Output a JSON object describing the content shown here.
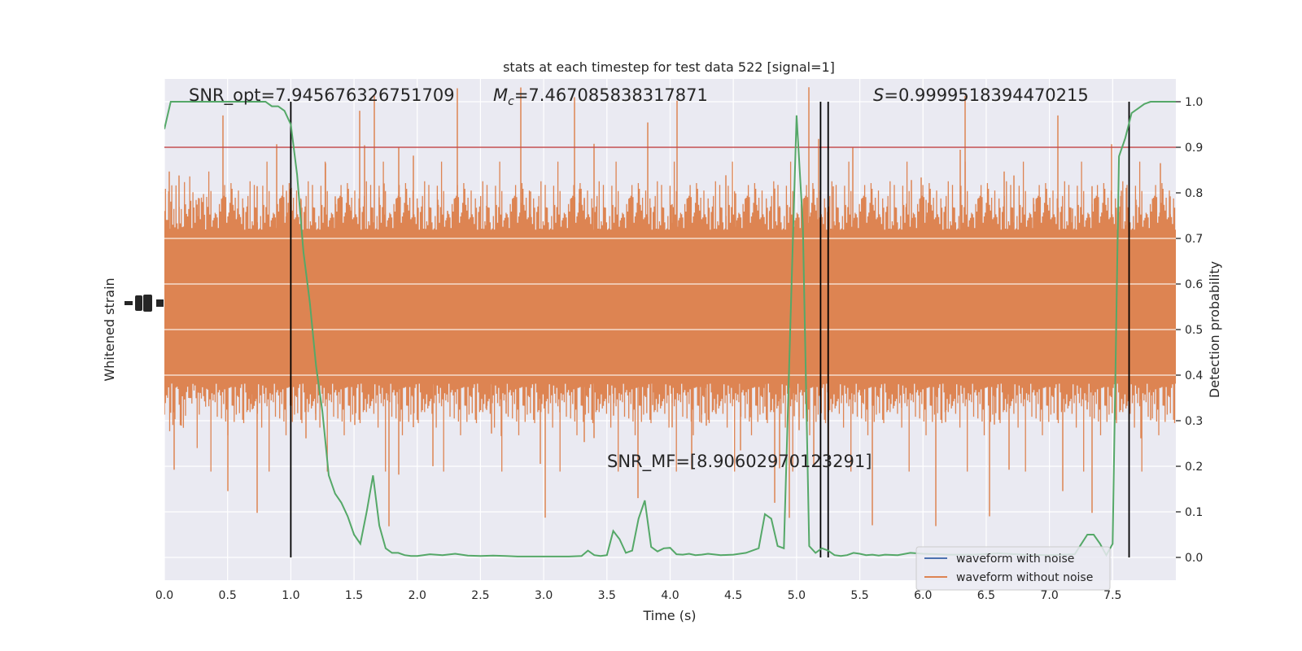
{
  "chart_data": {
    "type": "line",
    "title": "stats at each timestep for test data 522 [signal=1]",
    "xlabel": "Time (s)",
    "ylabel_left": "Whitened strain",
    "ylabel_right": "Detection probability",
    "xlim": [
      0.0,
      8.0
    ],
    "ylim_right": [
      -0.05,
      1.05
    ],
    "grid": true,
    "x_ticks": [
      "0.0",
      "0.5",
      "1.0",
      "1.5",
      "2.0",
      "2.5",
      "3.0",
      "3.5",
      "4.0",
      "4.5",
      "5.0",
      "5.5",
      "6.0",
      "6.5",
      "7.0",
      "7.5"
    ],
    "y_ticks_right": [
      "0.0",
      "0.1",
      "0.2",
      "0.3",
      "0.4",
      "0.5",
      "0.6",
      "0.7",
      "0.8",
      "0.9",
      "1.0"
    ],
    "threshold": 0.9,
    "vlines": [
      1.0,
      5.19,
      5.25,
      7.63
    ],
    "annotations": {
      "snr_opt": "SNR_opt=7.945676326751709",
      "mc": "=7.467085838317871",
      "s": "=0.9999518394470215",
      "snr_mf": "SNR_MF=[8.90602970123291]"
    },
    "legend": {
      "placement": "lower-right",
      "entries": [
        "waveform with noise",
        "waveform without noise"
      ]
    },
    "colors": {
      "waveform_with_noise": "#4c72b0",
      "waveform_without_noise": "#dd8452",
      "probability": "#55a868",
      "threshold": "#c44e52",
      "vlines": "#000000",
      "background": "#eaeaf2",
      "grid": "#ffffff"
    },
    "series": [
      {
        "name": "Detection probability",
        "x": [
          0.0,
          0.05,
          0.1,
          0.2,
          0.3,
          0.4,
          0.5,
          0.6,
          0.7,
          0.8,
          0.85,
          0.9,
          0.95,
          1.0,
          1.05,
          1.1,
          1.15,
          1.2,
          1.25,
          1.3,
          1.35,
          1.4,
          1.45,
          1.5,
          1.55,
          1.6,
          1.65,
          1.7,
          1.75,
          1.8,
          1.85,
          1.9,
          1.95,
          2.0,
          2.1,
          2.2,
          2.3,
          2.4,
          2.5,
          2.6,
          2.7,
          2.8,
          2.9,
          3.0,
          3.1,
          3.2,
          3.3,
          3.35,
          3.4,
          3.45,
          3.5,
          3.55,
          3.6,
          3.65,
          3.7,
          3.75,
          3.8,
          3.85,
          3.9,
          3.95,
          4.0,
          4.05,
          4.1,
          4.15,
          4.2,
          4.25,
          4.3,
          4.4,
          4.5,
          4.6,
          4.7,
          4.75,
          4.8,
          4.85,
          4.9,
          4.95,
          5.0,
          5.05,
          5.1,
          5.15,
          5.2,
          5.25,
          5.3,
          5.35,
          5.4,
          5.45,
          5.5,
          5.55,
          5.6,
          5.65,
          5.7,
          5.8,
          5.9,
          6.0,
          6.2,
          6.4,
          6.6,
          6.8,
          7.0,
          7.2,
          7.3,
          7.35,
          7.4,
          7.45,
          7.5,
          7.55,
          7.6,
          7.65,
          7.7,
          7.75,
          7.8,
          7.85,
          7.9,
          8.0
        ],
        "values": [
          0.94,
          1.0,
          1.0,
          1.0,
          1.0,
          1.0,
          1.0,
          1.0,
          1.0,
          1.0,
          0.99,
          0.99,
          0.98,
          0.95,
          0.84,
          0.67,
          0.56,
          0.42,
          0.32,
          0.18,
          0.14,
          0.12,
          0.09,
          0.05,
          0.03,
          0.1,
          0.18,
          0.07,
          0.02,
          0.01,
          0.01,
          0.005,
          0.003,
          0.003,
          0.007,
          0.005,
          0.008,
          0.004,
          0.003,
          0.004,
          0.003,
          0.002,
          0.002,
          0.002,
          0.002,
          0.002,
          0.003,
          0.015,
          0.005,
          0.003,
          0.005,
          0.058,
          0.04,
          0.01,
          0.015,
          0.085,
          0.125,
          0.023,
          0.013,
          0.02,
          0.021,
          0.007,
          0.006,
          0.008,
          0.005,
          0.006,
          0.008,
          0.005,
          0.006,
          0.01,
          0.02,
          0.095,
          0.085,
          0.025,
          0.02,
          0.5,
          0.97,
          0.73,
          0.025,
          0.01,
          0.02,
          0.015,
          0.005,
          0.003,
          0.005,
          0.01,
          0.008,
          0.005,
          0.006,
          0.004,
          0.006,
          0.005,
          0.01,
          0.008,
          0.006,
          0.006,
          0.009,
          0.006,
          0.005,
          0.007,
          0.05,
          0.05,
          0.03,
          0.005,
          0.03,
          0.88,
          0.92,
          0.975,
          0.985,
          0.995,
          1.0,
          1.0,
          1.0,
          1.0
        ]
      }
    ]
  }
}
